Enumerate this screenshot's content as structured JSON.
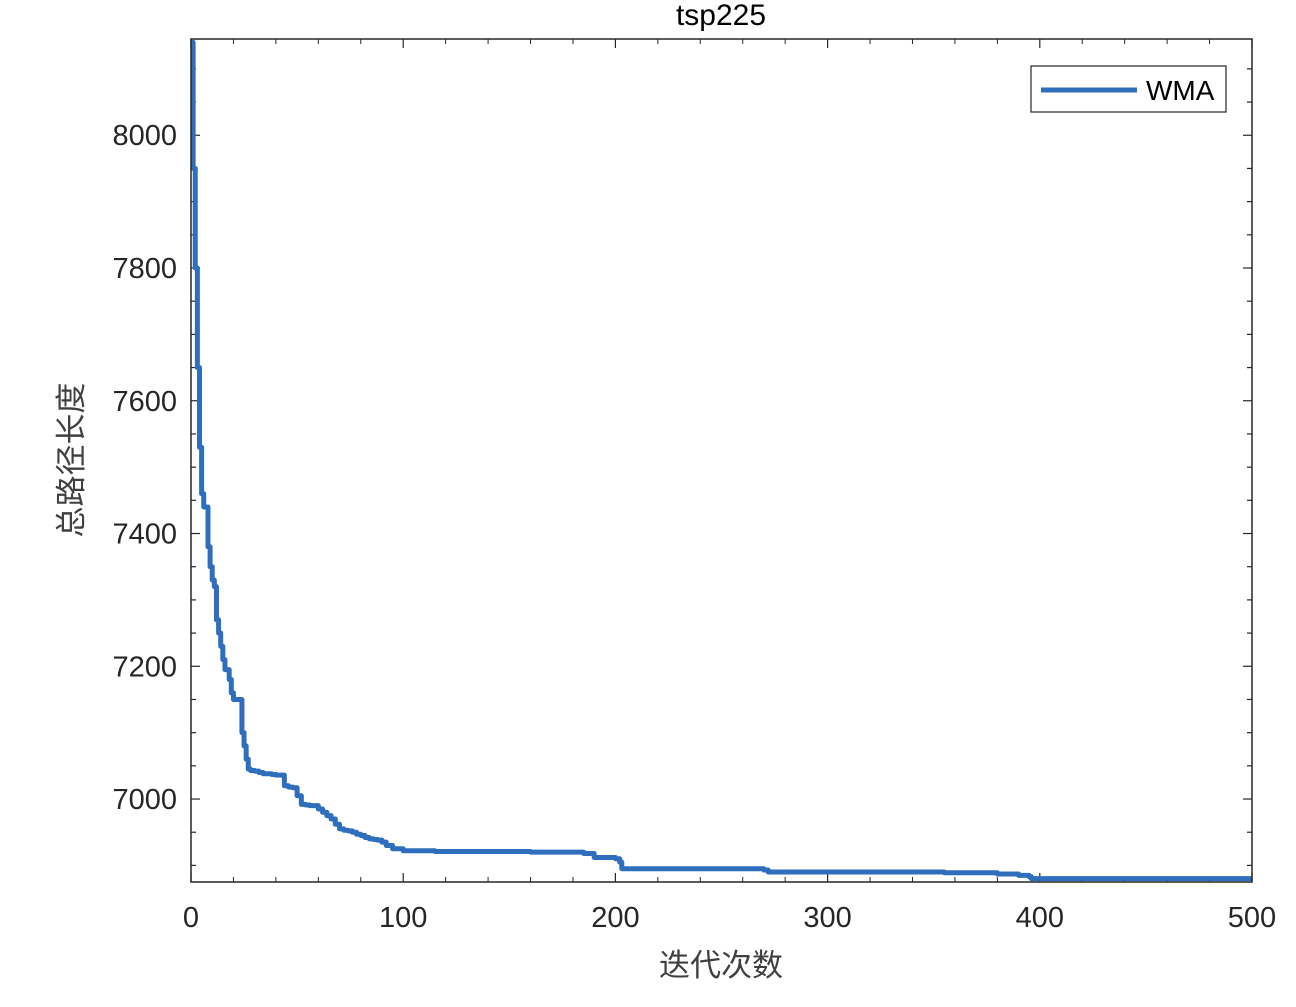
{
  "chart_data": {
    "type": "line",
    "title": "tsp225",
    "xlabel": "迭代次数",
    "ylabel": "总路径长度",
    "xlim": [
      0,
      500
    ],
    "ylim": [
      6875,
      8145
    ],
    "xticks": [
      0,
      100,
      200,
      300,
      400,
      500
    ],
    "yticks": [
      7000,
      7200,
      7400,
      7600,
      7800,
      8000
    ],
    "grid": false,
    "legend": {
      "position": "top-right"
    },
    "series": [
      {
        "name": "WMA",
        "color": "#2f6ebd",
        "x": [
          0,
          1,
          2,
          3,
          4,
          5,
          6,
          7,
          8,
          9,
          10,
          11,
          12,
          13,
          14,
          15,
          16,
          17,
          18,
          19,
          20,
          22,
          24,
          25,
          26,
          27,
          28,
          30,
          32,
          34,
          36,
          38,
          40,
          42,
          44,
          46,
          48,
          50,
          52,
          54,
          56,
          58,
          60,
          62,
          64,
          66,
          68,
          70,
          72,
          74,
          76,
          78,
          80,
          82,
          84,
          86,
          88,
          90,
          92,
          95,
          100,
          115,
          160,
          185,
          190,
          200,
          202,
          203,
          270,
          272,
          355,
          380,
          390,
          395,
          396,
          430,
          500
        ],
        "y": [
          8140,
          7950,
          7800,
          7650,
          7530,
          7460,
          7440,
          7440,
          7380,
          7350,
          7330,
          7320,
          7270,
          7250,
          7230,
          7210,
          7195,
          7195,
          7180,
          7160,
          7150,
          7150,
          7100,
          7080,
          7060,
          7045,
          7043,
          7042,
          7040,
          7038,
          7038,
          7037,
          7036,
          7036,
          7020,
          7018,
          7017,
          7005,
          6992,
          6991,
          6990,
          6990,
          6985,
          6980,
          6975,
          6970,
          6962,
          6955,
          6953,
          6952,
          6950,
          6947,
          6945,
          6942,
          6940,
          6939,
          6938,
          6935,
          6930,
          6925,
          6922,
          6921,
          6920,
          6918,
          6912,
          6910,
          6905,
          6895,
          6893,
          6890,
          6889,
          6887,
          6885,
          6883,
          6880,
          6880,
          6880
        ]
      }
    ]
  }
}
